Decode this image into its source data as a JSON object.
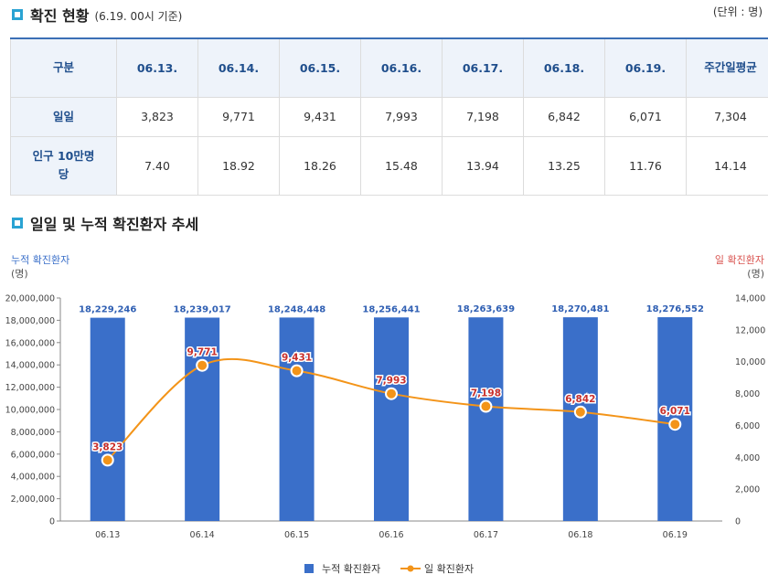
{
  "status_section": {
    "title": "확진 현황",
    "subtitle": "(6.19. 00시 기준)",
    "unit": "(단위 : 명)"
  },
  "table": {
    "headers": [
      "구분",
      "06.13.",
      "06.14.",
      "06.15.",
      "06.16.",
      "06.17.",
      "06.18.",
      "06.19.",
      "주간일평균"
    ],
    "rows": [
      {
        "label": "일일",
        "values": [
          "3,823",
          "9,771",
          "9,431",
          "7,993",
          "7,198",
          "6,842",
          "6,071",
          "7,304"
        ]
      },
      {
        "label": "인구 10만명당",
        "values": [
          "7.40",
          "18.92",
          "18.26",
          "15.48",
          "13.94",
          "13.25",
          "11.76",
          "14.14"
        ]
      }
    ]
  },
  "trend_section": {
    "title": "일일 및 누적 확진환자 추세"
  },
  "colors": {
    "bar": "#3a6fc9",
    "line": "#f39419",
    "left_axis": "#3a6fc9",
    "right_axis": "#d9534f",
    "label_bar": "#2f5fb3",
    "label_line": "#c9302c"
  },
  "chart_data": {
    "type": "bar+line",
    "categories": [
      "06.13",
      "06.14",
      "06.15",
      "06.16",
      "06.17",
      "06.18",
      "06.19"
    ],
    "series": [
      {
        "name": "누적 확진환자",
        "type": "bar",
        "axis": "left",
        "values": [
          18229246,
          18239017,
          18248448,
          18256441,
          18263639,
          18270481,
          18276552
        ],
        "labels": [
          "18,229,246",
          "18,239,017",
          "18,248,448",
          "18,256,441",
          "18,263,639",
          "18,270,481",
          "18,276,552"
        ]
      },
      {
        "name": "일 확진환자",
        "type": "line",
        "axis": "right",
        "values": [
          3823,
          9771,
          9431,
          7993,
          7198,
          6842,
          6071
        ],
        "labels": [
          "3,823",
          "9,771",
          "9,431",
          "7,993",
          "7,198",
          "6,842",
          "6,071"
        ]
      }
    ],
    "left_axis": {
      "title": "누적 확진환자",
      "unit": "(명)",
      "ylim": [
        0,
        20000000
      ],
      "ticks": [
        0,
        2000000,
        4000000,
        6000000,
        8000000,
        10000000,
        12000000,
        14000000,
        16000000,
        18000000,
        20000000
      ],
      "tick_labels": [
        "0",
        "2,000,000",
        "4,000,000",
        "6,000,000",
        "8,000,000",
        "10,000,000",
        "12,000,000",
        "14,000,000",
        "16,000,000",
        "18,000,000",
        "20,000,000"
      ]
    },
    "right_axis": {
      "title": "일 확진환자",
      "unit": "(명)",
      "ylim": [
        0,
        14000
      ],
      "ticks": [
        0,
        2000,
        4000,
        6000,
        8000,
        10000,
        12000,
        14000
      ],
      "tick_labels": [
        "0",
        "2,000",
        "4,000",
        "6,000",
        "8,000",
        "10,000",
        "12,000",
        "14,000"
      ]
    },
    "legend": [
      "누적 확진환자",
      "일 확진환자"
    ],
    "legend_position": "bottom-center"
  }
}
